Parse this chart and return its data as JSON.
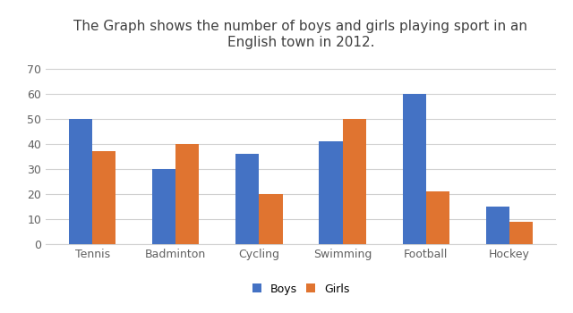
{
  "title": "The Graph shows the number of boys and girls playing sport in an\nEnglish town in 2012.",
  "categories": [
    "Tennis",
    "Badminton",
    "Cycling",
    "Swimming",
    "Football",
    "Hockey"
  ],
  "boys": [
    50,
    30,
    36,
    41,
    60,
    15
  ],
  "girls": [
    37,
    40,
    20,
    50,
    21,
    9
  ],
  "boys_color": "#4472C4",
  "girls_color": "#E07430",
  "ylim": [
    0,
    75
  ],
  "yticks": [
    0,
    10,
    20,
    30,
    40,
    50,
    60,
    70
  ],
  "legend_labels": [
    "Boys",
    "Girls"
  ],
  "bar_width": 0.28,
  "background_color": "#ffffff",
  "grid_color": "#d0d0d0",
  "title_fontsize": 11,
  "tick_fontsize": 9,
  "legend_fontsize": 9,
  "title_color": "#404040",
  "tick_color": "#606060"
}
